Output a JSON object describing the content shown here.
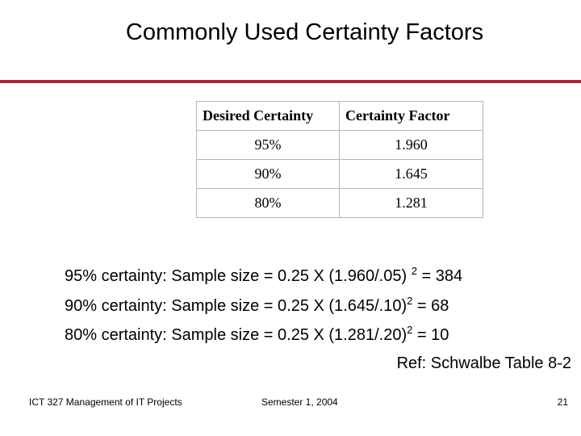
{
  "slide": {
    "title": "Commonly Used Certainty Factors",
    "table": {
      "headers": [
        "Desired Certainty",
        "Certainty Factor"
      ],
      "rows": [
        [
          "95%",
          "1.960"
        ],
        [
          "90%",
          "1.645"
        ],
        [
          "80%",
          "1.281"
        ]
      ]
    },
    "calculations": [
      {
        "prefix": "95% certainty: Sample size = 0.25 X (1.960/.05) ",
        "exp": "2",
        "suffix": " = 384"
      },
      {
        "prefix": "90% certainty: Sample size = 0.25 X (1.645/.10)",
        "exp": "2",
        "suffix": " = 68"
      },
      {
        "prefix": "80% certainty: Sample size = 0.25 X (1.281/.20)",
        "exp": "2",
        "suffix": " = 10"
      }
    ],
    "reference": "Ref: Schwalbe Table 8-2"
  },
  "footer": {
    "course": "ICT 327 Management of IT Projects",
    "semester": "Semester 1, 2004",
    "page": "21"
  },
  "colors": {
    "title_rule": "#a8263a",
    "table_border": "#b5b5b5"
  }
}
